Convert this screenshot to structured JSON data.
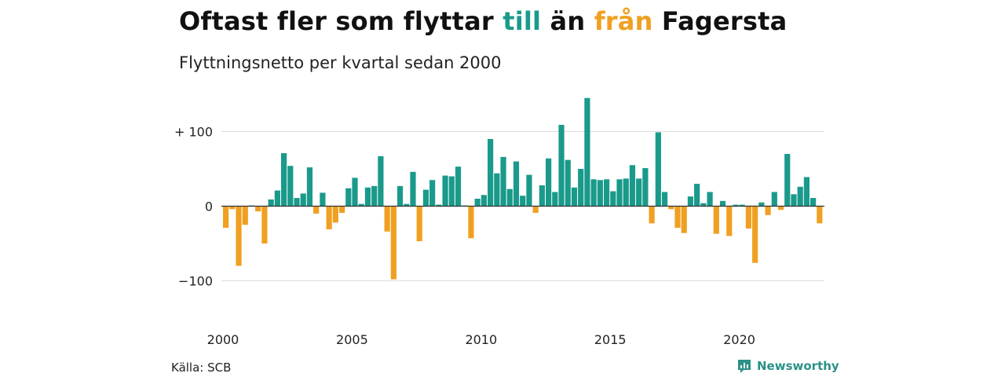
{
  "header": {
    "title_parts": [
      {
        "text": "Oftast fler som flyttar ",
        "color": "#111111"
      },
      {
        "text": "till",
        "color": "#1a9a8b"
      },
      {
        "text": " än ",
        "color": "#111111"
      },
      {
        "text": "från",
        "color": "#f0a021"
      },
      {
        "text": " Fagersta",
        "color": "#111111"
      }
    ],
    "subtitle": "Flyttningsnetto per kvartal sedan 2000"
  },
  "footer": {
    "source": "Källa: SCB",
    "brand": "Newsworthy"
  },
  "colors": {
    "positive": "#1a9a8b",
    "negative": "#f0a021",
    "grid": "#dddddd",
    "zero_line": "#333333",
    "brand": "#2a9187"
  },
  "chart_data": {
    "type": "bar",
    "title": "Oftast fler som flyttar till än från Fagersta",
    "subtitle": "Flyttningsnetto per kvartal sedan 2000",
    "x_start_year": 2000,
    "frequency": "quarterly",
    "ylim": [
      -120,
      150
    ],
    "y_ticks": [
      {
        "value": 100,
        "label": "+ 100"
      },
      {
        "value": 0,
        "label": "0"
      },
      {
        "value": -100,
        "label": "−100"
      }
    ],
    "x_ticks": [
      {
        "year": 2000,
        "label": "2000"
      },
      {
        "year": 2005,
        "label": "2005"
      },
      {
        "year": 2010,
        "label": "2010"
      },
      {
        "year": 2015,
        "label": "2015"
      },
      {
        "year": 2020,
        "label": "2020"
      }
    ],
    "grid": true,
    "values": [
      -29,
      -4,
      -80,
      -25,
      1,
      -7,
      -50,
      9,
      21,
      71,
      54,
      11,
      17,
      52,
      -10,
      18,
      -31,
      -22,
      -9,
      24,
      38,
      3,
      25,
      27,
      67,
      -34,
      -98,
      27,
      3,
      46,
      -47,
      22,
      35,
      2,
      41,
      40,
      53,
      1,
      -43,
      10,
      15,
      90,
      44,
      66,
      23,
      60,
      14,
      42,
      -9,
      28,
      64,
      19,
      109,
      62,
      25,
      50,
      145,
      36,
      35,
      36,
      20,
      36,
      37,
      55,
      37,
      51,
      -23,
      99,
      19,
      -4,
      -29,
      -36,
      13,
      30,
      4,
      19,
      -37,
      7,
      -40,
      2,
      2,
      -30,
      -76,
      5,
      -12,
      19,
      -5,
      70,
      16,
      26,
      39,
      11,
      -23
    ]
  }
}
